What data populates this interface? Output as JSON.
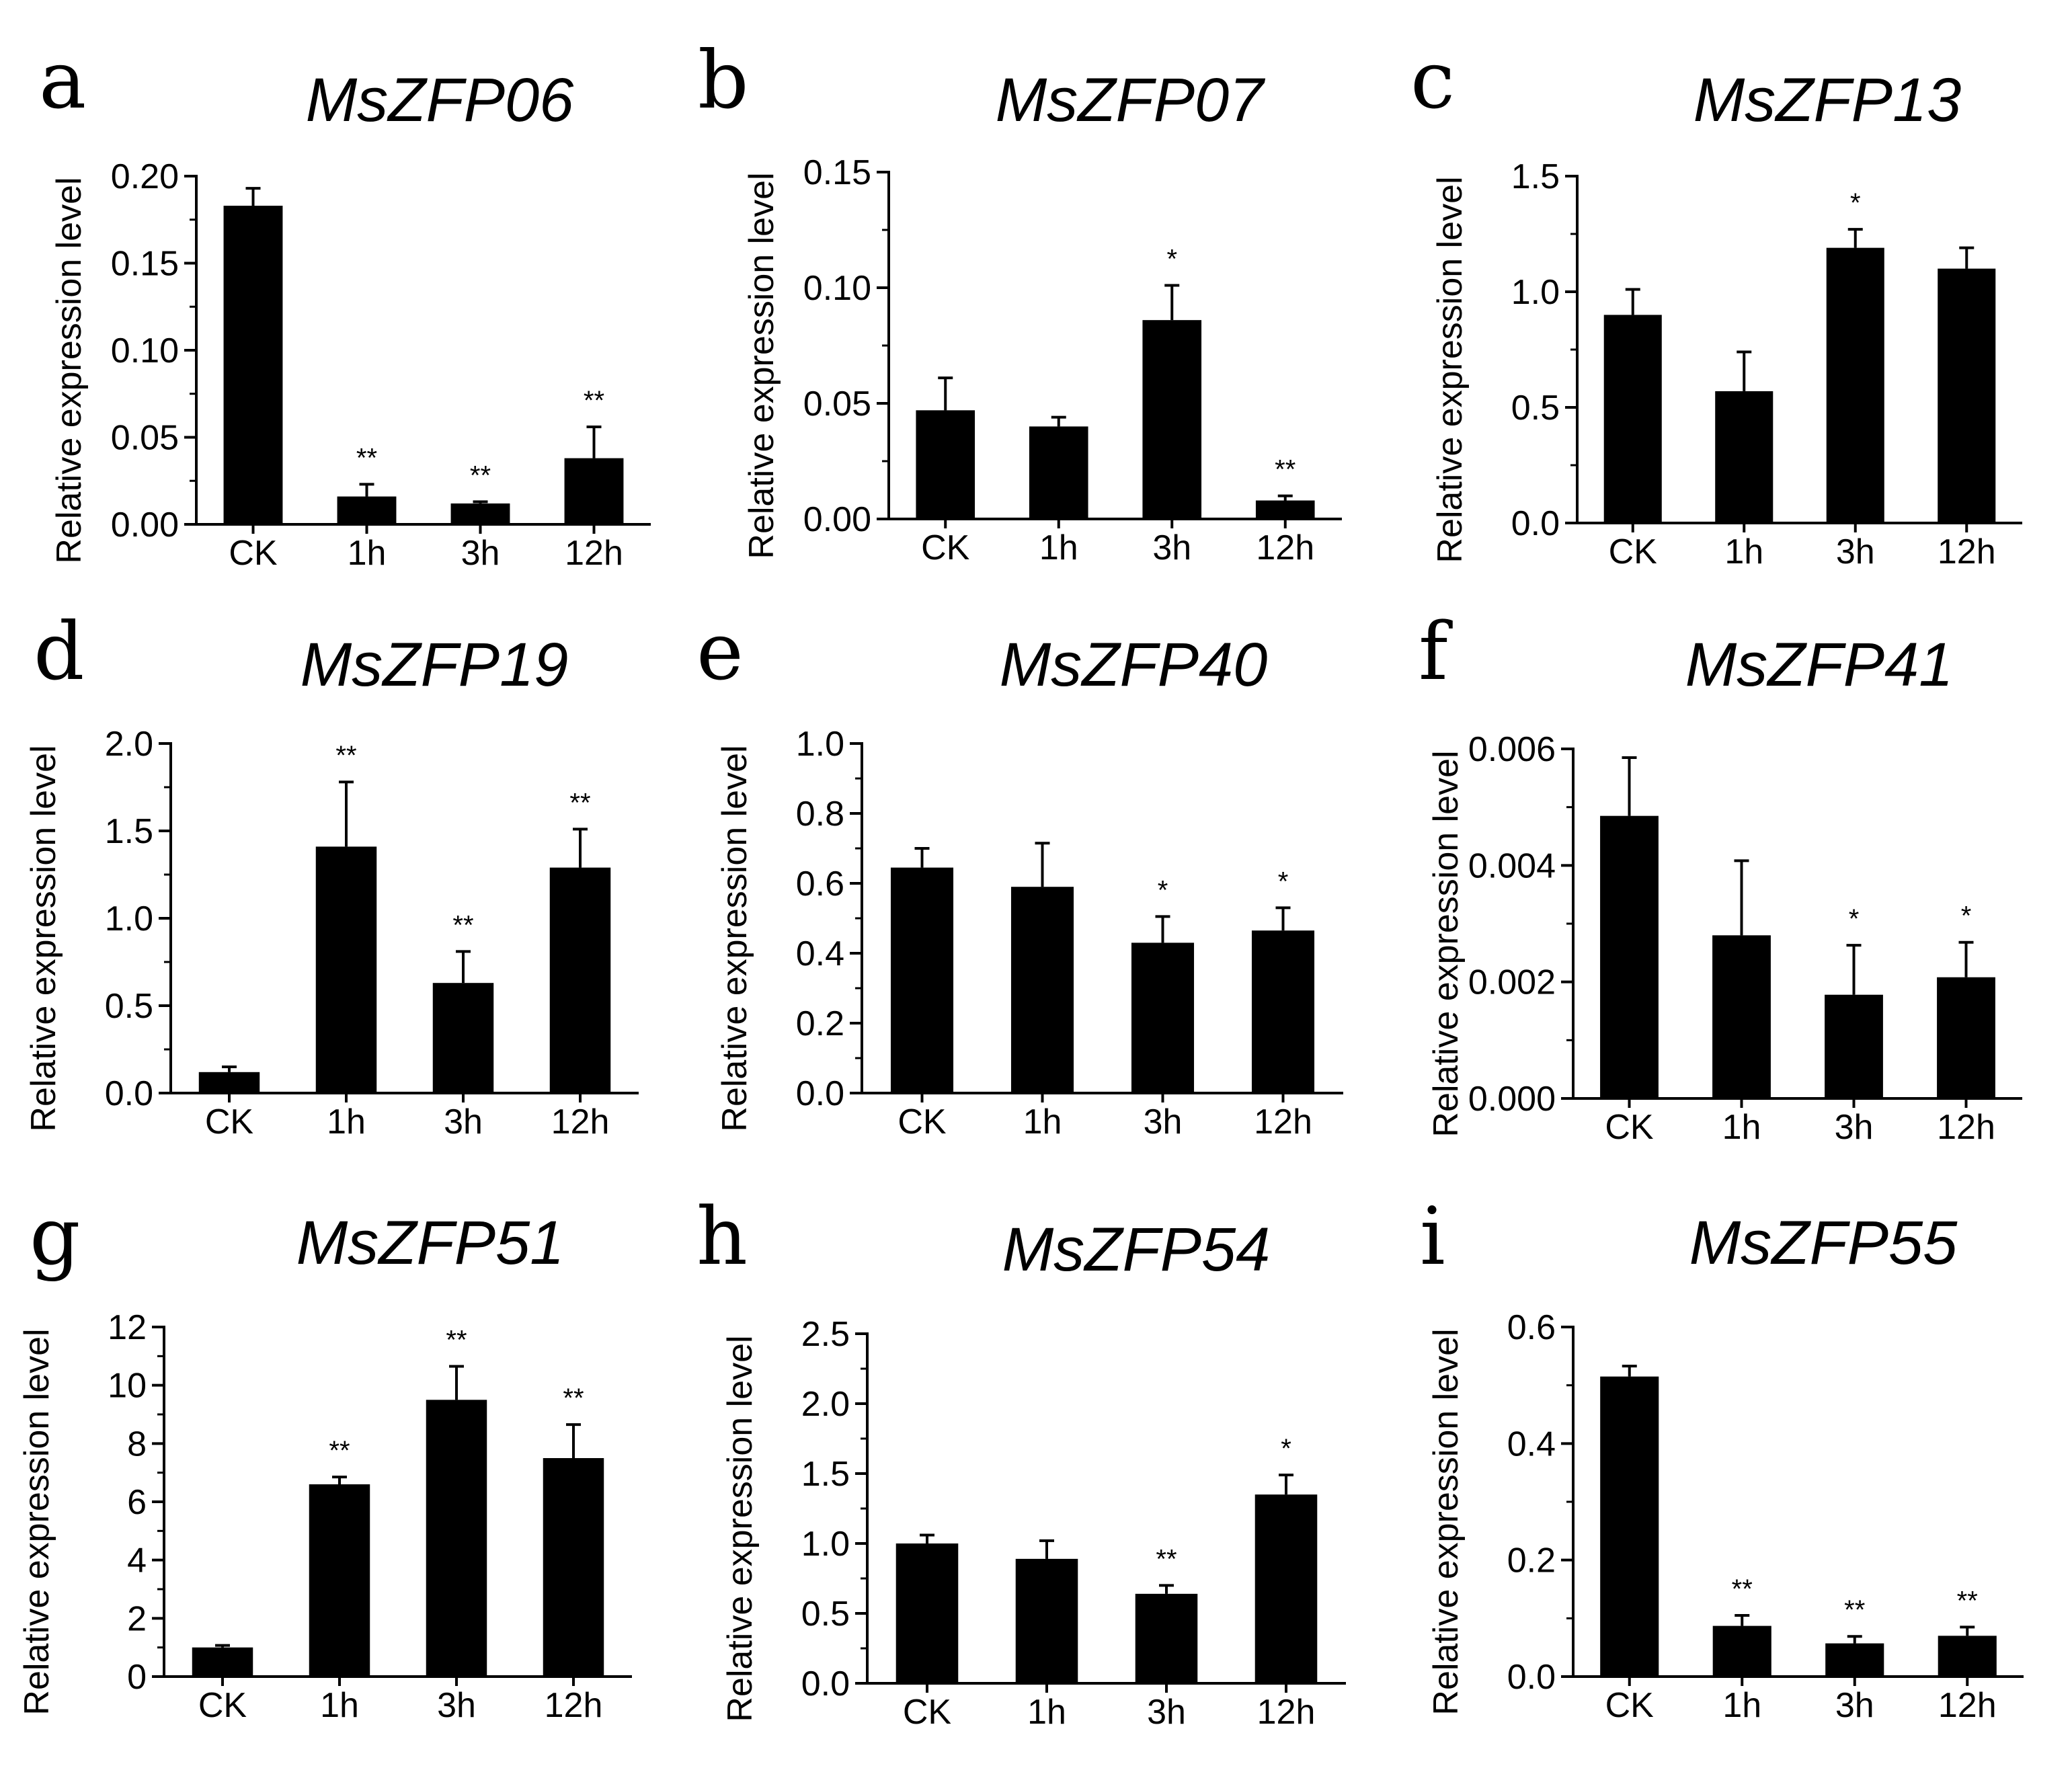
{
  "chart_data": [
    {
      "panel": "a",
      "type": "bar",
      "title": "MsZFP06",
      "ylabel": "Relative expression level",
      "xlabel": "",
      "categories": [
        "CK",
        "1h",
        "3h",
        "12h"
      ],
      "values": [
        0.183,
        0.016,
        0.012,
        0.038
      ],
      "errors": [
        0.01,
        0.007,
        0.001,
        0.018
      ],
      "significance": [
        "",
        "**",
        "**",
        "**"
      ],
      "ylim": [
        0,
        0.2
      ],
      "yticks": [
        0,
        0.05,
        0.1,
        0.15,
        0.2
      ],
      "ytick_labels": [
        "0.00",
        "0.05",
        "0.10",
        "0.15",
        "0.20"
      ]
    },
    {
      "panel": "b",
      "type": "bar",
      "title": "MsZFP07",
      "ylabel": "Relative expression level",
      "xlabel": "",
      "categories": [
        "CK",
        "1h",
        "3h",
        "12h"
      ],
      "values": [
        0.047,
        0.04,
        0.086,
        0.008
      ],
      "errors": [
        0.014,
        0.004,
        0.015,
        0.002
      ],
      "significance": [
        "",
        "",
        "*",
        "**"
      ],
      "ylim": [
        0,
        0.15
      ],
      "yticks": [
        0,
        0.05,
        0.1,
        0.15
      ],
      "ytick_labels": [
        "0.00",
        "0.05",
        "0.10",
        "0.15"
      ]
    },
    {
      "panel": "c",
      "type": "bar",
      "title": "MsZFP13",
      "ylabel": "Relative expression level",
      "xlabel": "",
      "categories": [
        "CK",
        "1h",
        "3h",
        "12h"
      ],
      "values": [
        0.9,
        0.57,
        1.19,
        1.1
      ],
      "errors": [
        0.11,
        0.17,
        0.08,
        0.09
      ],
      "significance": [
        "",
        "",
        "*",
        ""
      ],
      "ylim": [
        0,
        1.5
      ],
      "yticks": [
        0,
        0.5,
        1,
        1.5
      ],
      "ytick_labels": [
        "0.0",
        "0.5",
        "1.0",
        "1.5"
      ]
    },
    {
      "panel": "d",
      "type": "bar",
      "title": "MsZFP19",
      "ylabel": "Relative expression level",
      "xlabel": "",
      "categories": [
        "CK",
        "1h",
        "3h",
        "12h"
      ],
      "values": [
        0.12,
        1.41,
        0.63,
        1.29
      ],
      "errors": [
        0.03,
        0.37,
        0.18,
        0.22
      ],
      "significance": [
        "",
        "**",
        "**",
        "**"
      ],
      "ylim": [
        0,
        2
      ],
      "yticks": [
        0,
        0.5,
        1,
        1.5,
        2
      ],
      "ytick_labels": [
        "0.0",
        "0.5",
        "1.0",
        "1.5",
        "2.0"
      ]
    },
    {
      "panel": "e",
      "type": "bar",
      "title": "MsZFP40",
      "ylabel": "Relative expression level",
      "xlabel": "",
      "categories": [
        "CK",
        "1h",
        "3h",
        "12h"
      ],
      "values": [
        0.645,
        0.59,
        0.43,
        0.465
      ],
      "errors": [
        0.055,
        0.125,
        0.075,
        0.065
      ],
      "significance": [
        "",
        "",
        "*",
        "*"
      ],
      "ylim": [
        0,
        1
      ],
      "yticks": [
        0,
        0.2,
        0.4,
        0.6,
        0.8,
        1
      ],
      "ytick_labels": [
        "0.0",
        "0.2",
        "0.4",
        "0.6",
        "0.8",
        "1.0"
      ]
    },
    {
      "panel": "f",
      "type": "bar",
      "title": "MsZFP41",
      "ylabel": "Relative expression level",
      "xlabel": "",
      "categories": [
        "CK",
        "1h",
        "3h",
        "12h"
      ],
      "values": [
        0.00485,
        0.0028,
        0.00178,
        0.00208
      ],
      "errors": [
        0.001,
        0.00128,
        0.00085,
        0.0006
      ],
      "significance": [
        "",
        "",
        "*",
        "*"
      ],
      "ylim": [
        0,
        0.006
      ],
      "yticks": [
        0,
        0.002,
        0.004,
        0.006
      ],
      "ytick_labels": [
        "0.000",
        "0.002",
        "0.004",
        "0.006"
      ]
    },
    {
      "panel": "g",
      "type": "bar",
      "title": "MsZFP51",
      "ylabel": "Relative expression level",
      "xlabel": "",
      "categories": [
        "CK",
        "1h",
        "3h",
        "12h"
      ],
      "values": [
        1.0,
        6.6,
        9.5,
        7.5
      ],
      "errors": [
        0.07,
        0.25,
        1.15,
        1.15
      ],
      "significance": [
        "",
        "**",
        "**",
        "**"
      ],
      "ylim": [
        0,
        12
      ],
      "yticks": [
        0,
        2,
        4,
        6,
        8,
        10,
        12
      ],
      "ytick_labels": [
        "0",
        "2",
        "4",
        "6",
        "8",
        "10",
        "12"
      ]
    },
    {
      "panel": "h",
      "type": "bar",
      "title": "MsZFP54",
      "ylabel": "Relative expression level",
      "xlabel": "",
      "categories": [
        "CK",
        "1h",
        "3h",
        "12h"
      ],
      "values": [
        1.0,
        0.89,
        0.64,
        1.35
      ],
      "errors": [
        0.06,
        0.13,
        0.06,
        0.14
      ],
      "significance": [
        "",
        "",
        "**",
        "*"
      ],
      "ylim": [
        0,
        2.5
      ],
      "yticks": [
        0,
        0.5,
        1,
        1.5,
        2,
        2.5
      ],
      "ytick_labels": [
        "0.0",
        "0.5",
        "1.0",
        "1.5",
        "2.0",
        "2.5"
      ]
    },
    {
      "panel": "i",
      "type": "bar",
      "title": "MsZFP55",
      "ylabel": "Relative expression level",
      "xlabel": "",
      "categories": [
        "CK",
        "1h",
        "3h",
        "12h"
      ],
      "values": [
        0.515,
        0.087,
        0.057,
        0.07
      ],
      "errors": [
        0.018,
        0.018,
        0.012,
        0.015
      ],
      "significance": [
        "",
        "**",
        "**",
        "**"
      ],
      "ylim": [
        0,
        0.6
      ],
      "yticks": [
        0,
        0.2,
        0.4,
        0.6
      ],
      "ytick_labels": [
        "0.0",
        "0.2",
        "0.4",
        "0.6"
      ]
    }
  ]
}
